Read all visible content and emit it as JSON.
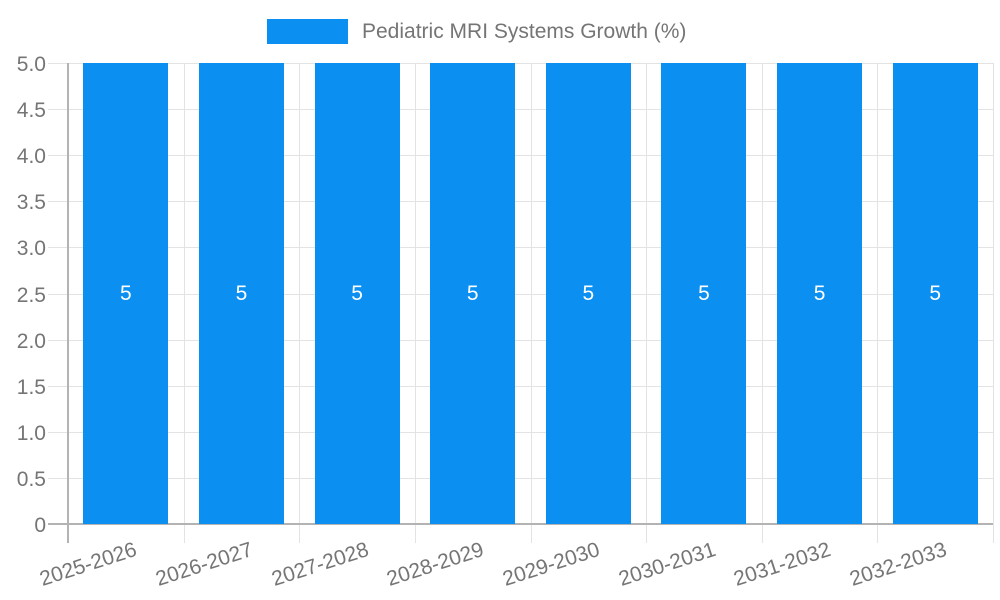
{
  "legend": {
    "label": "Pediatric MRI Systems Growth (%)"
  },
  "colors": {
    "bar": "#0b90f2",
    "grid": "#e3e3e3",
    "axis": "#b3b3b3",
    "tick_text": "#757575",
    "bar_label_text": "#ffffff",
    "background": "#ffffff"
  },
  "chart_data": {
    "type": "bar",
    "title": "",
    "legend_label": "Pediatric MRI Systems Growth (%)",
    "legend_position": "top",
    "categories": [
      "2025-2026",
      "2026-2027",
      "2027-2028",
      "2028-2029",
      "2029-2030",
      "2030-2031",
      "2031-2032",
      "2032-2033"
    ],
    "values": [
      5,
      5,
      5,
      5,
      5,
      5,
      5,
      5
    ],
    "bar_labels": [
      "5",
      "5",
      "5",
      "5",
      "5",
      "5",
      "5",
      "5"
    ],
    "xlabel": "",
    "ylabel": "",
    "ylim": [
      0,
      5
    ],
    "ytick_step": 0.5,
    "ytick_labels": [
      "5.0",
      "4.5",
      "4.0",
      "3.5",
      "3.0",
      "2.5",
      "2.0",
      "1.5",
      "1.0",
      "0.5",
      "0"
    ],
    "grid": true
  }
}
